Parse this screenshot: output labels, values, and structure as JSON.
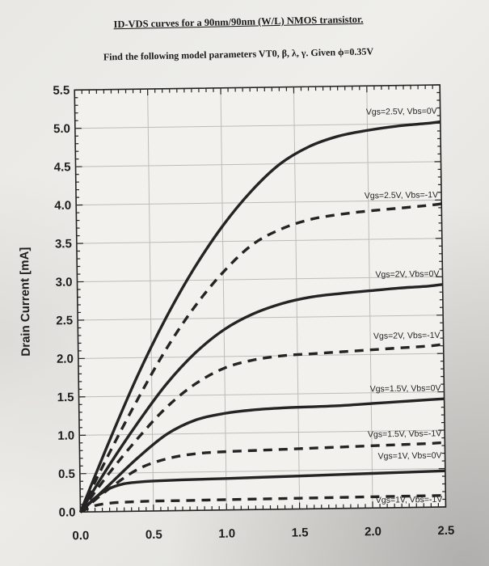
{
  "header": {
    "title": "ID-VDS curves for a 90nm/90nm (W/L) NMOS transistor.",
    "subtitle": "Find the following model parameters VT0, β, λ, γ. Given ϕ=0.35V"
  },
  "chart_data": {
    "type": "line",
    "title": "ID-VDS curves for a 90nm/90nm (W/L) NMOS transistor.",
    "xlabel": "",
    "ylabel": "Drain Current [mA]",
    "xlim": [
      0,
      2.5
    ],
    "ylim": [
      0,
      5.5
    ],
    "xticks": [
      "0.0",
      "0.5",
      "1.0",
      "1.5",
      "2.0",
      "2.5"
    ],
    "yticks": [
      "0.0",
      "0.5",
      "1.0",
      "1.5",
      "2.0",
      "2.5",
      "3.0",
      "3.5",
      "4.0",
      "4.5",
      "5.0",
      "5.5"
    ],
    "grid": true,
    "series": [
      {
        "name": "Vgs=2.5V, Vbs=0V",
        "style": "solid",
        "x": [
          0,
          0.2,
          0.4,
          0.6,
          0.8,
          1.0,
          1.2,
          1.4,
          1.6,
          1.8,
          2.0,
          2.2,
          2.4,
          2.5
        ],
        "values": [
          0,
          0.9,
          1.75,
          2.5,
          3.15,
          3.7,
          4.15,
          4.5,
          4.72,
          4.85,
          4.92,
          4.97,
          5.0,
          5.02
        ]
      },
      {
        "name": "Vgs=2.5V, Vbs=-1V",
        "style": "dashed",
        "x": [
          0,
          0.2,
          0.4,
          0.6,
          0.8,
          1.0,
          1.2,
          1.4,
          1.6,
          1.8,
          2.0,
          2.2,
          2.4,
          2.5
        ],
        "values": [
          0,
          0.75,
          1.45,
          2.1,
          2.65,
          3.1,
          3.45,
          3.65,
          3.77,
          3.83,
          3.87,
          3.9,
          3.93,
          3.95
        ]
      },
      {
        "name": "Vgs=2V, Vbs=0V",
        "style": "solid",
        "x": [
          0,
          0.2,
          0.4,
          0.6,
          0.8,
          1.0,
          1.2,
          1.4,
          1.6,
          1.8,
          2.0,
          2.2,
          2.4,
          2.5
        ],
        "values": [
          0,
          0.6,
          1.15,
          1.65,
          2.05,
          2.35,
          2.55,
          2.68,
          2.76,
          2.8,
          2.83,
          2.86,
          2.88,
          2.9
        ]
      },
      {
        "name": "Vgs=2V, Vbs=-1V",
        "style": "dashed",
        "x": [
          0,
          0.2,
          0.4,
          0.6,
          0.8,
          1.0,
          1.2,
          1.4,
          1.6,
          1.8,
          2.0,
          2.2,
          2.4,
          2.5
        ],
        "values": [
          0,
          0.5,
          0.95,
          1.35,
          1.65,
          1.85,
          1.95,
          2.0,
          2.02,
          2.04,
          2.06,
          2.08,
          2.1,
          2.12
        ]
      },
      {
        "name": "Vgs=1.5V, Vbs=0V",
        "style": "solid",
        "x": [
          0,
          0.2,
          0.4,
          0.6,
          0.8,
          1.0,
          1.2,
          1.4,
          1.6,
          1.8,
          2.0,
          2.2,
          2.4,
          2.5
        ],
        "values": [
          0,
          0.35,
          0.7,
          1.0,
          1.18,
          1.26,
          1.3,
          1.32,
          1.33,
          1.34,
          1.36,
          1.38,
          1.4,
          1.41
        ]
      },
      {
        "name": "Vgs=1.5V, Vbs=-1V",
        "style": "dashed",
        "x": [
          0,
          0.2,
          0.4,
          0.6,
          0.8,
          1.0,
          1.2,
          1.4,
          1.6,
          1.8,
          2.0,
          2.2,
          2.4,
          2.5
        ],
        "values": [
          0,
          0.3,
          0.55,
          0.68,
          0.74,
          0.76,
          0.77,
          0.78,
          0.79,
          0.8,
          0.81,
          0.82,
          0.83,
          0.84
        ]
      },
      {
        "name": "Vgs=1V, Vbs=0V",
        "style": "solid",
        "x": [
          0,
          0.1,
          0.2,
          0.3,
          0.4,
          0.5,
          0.7,
          1.0,
          1.5,
          2.0,
          2.5
        ],
        "values": [
          0,
          0.18,
          0.3,
          0.36,
          0.38,
          0.39,
          0.4,
          0.41,
          0.43,
          0.45,
          0.47
        ]
      },
      {
        "name": "Vgs=1V, Vbs=-1V",
        "style": "dashed",
        "x": [
          0,
          0.1,
          0.2,
          0.3,
          0.4,
          0.5,
          0.7,
          1.0,
          1.5,
          2.0,
          2.5
        ],
        "values": [
          0,
          0.08,
          0.11,
          0.12,
          0.125,
          0.13,
          0.13,
          0.135,
          0.14,
          0.145,
          0.15
        ]
      }
    ]
  }
}
